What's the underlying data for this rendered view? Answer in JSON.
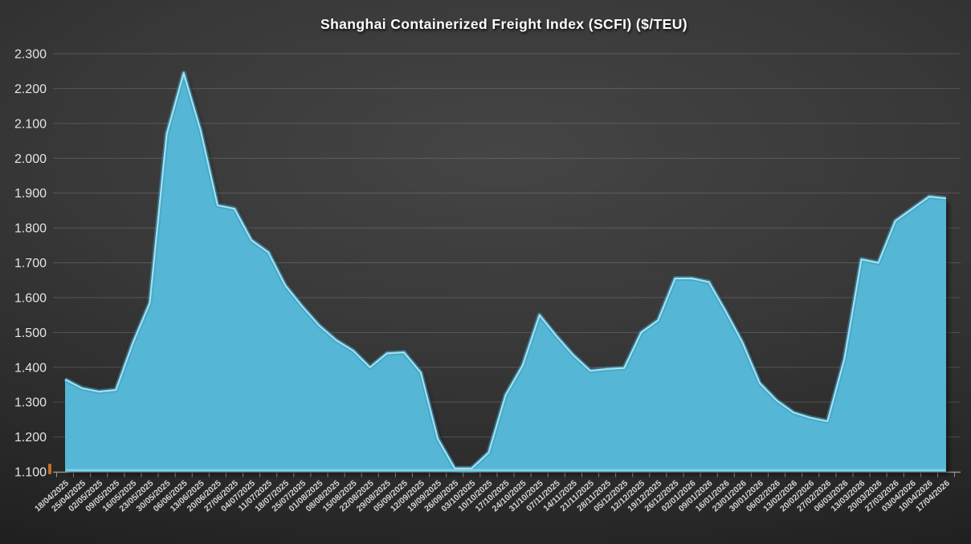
{
  "chart_data": {
    "type": "area",
    "title": "Shanghai Containerized Freight Index (SCFI) ($/TEU)",
    "unit": "$/TEU",
    "x": [
      "18/04/2025",
      "25/04/2025",
      "02/05/2025",
      "09/05/2025",
      "16/05/2025",
      "23/05/2025",
      "30/05/2025",
      "06/06/2025",
      "13/06/2025",
      "20/06/2025",
      "27/06/2025",
      "04/07/2025",
      "11/07/2025",
      "18/07/2025",
      "25/07/2025",
      "01/08/2025",
      "08/08/2025",
      "15/08/2025",
      "22/08/2025",
      "29/08/2025",
      "05/09/2025",
      "12/09/2025",
      "19/09/2025",
      "26/09/2025",
      "03/10/2025",
      "10/10/2025",
      "17/10/2025",
      "24/10/2025",
      "31/10/2025",
      "07/11/2025",
      "14/11/2025",
      "21/11/2025",
      "28/11/2025",
      "05/12/2025",
      "12/12/2025",
      "19/12/2025",
      "26/12/2025",
      "02/01/2026",
      "09/01/2026",
      "16/01/2026",
      "23/01/2026",
      "30/01/2026",
      "06/02/2026",
      "13/02/2026",
      "20/02/2026",
      "27/02/2026",
      "06/03/2026",
      "13/03/2026",
      "20/03/2026",
      "27/03/2026",
      "03/04/2026",
      "10/04/2026",
      "17/04/2026"
    ],
    "values": [
      1365,
      1340,
      1330,
      1335,
      1470,
      1585,
      2070,
      2245,
      2080,
      1865,
      1855,
      1765,
      1730,
      1635,
      1575,
      1520,
      1478,
      1448,
      1400,
      1440,
      1443,
      1385,
      1195,
      1110,
      1110,
      1155,
      1320,
      1405,
      1550,
      1490,
      1435,
      1390,
      1395,
      1398,
      1500,
      1535,
      1655,
      1655,
      1645,
      1560,
      1470,
      1355,
      1305,
      1270,
      1255,
      1245,
      1425,
      1710,
      1700,
      1820,
      1855,
      1890,
      1885
    ],
    "ylim": [
      1100,
      2300
    ],
    "ytick_step": 100,
    "ytick_labels": [
      "1.100",
      "1.200",
      "1.300",
      "1.400",
      "1.500",
      "1.600",
      "1.700",
      "1.800",
      "1.900",
      "2.000",
      "2.100",
      "2.200",
      "2.300"
    ],
    "grid": true,
    "legend": "none",
    "colors": {
      "area_fill": "#55b6d5",
      "area_edge_highlight": "#a9e6f4",
      "area_edge_dark": "#3d9dbf",
      "bottom_highlight": "#8fd9ec",
      "gridline": "rgba(255,255,255,0.16)",
      "axis_line": "#9a9a9a",
      "tick": "#9a9a9a",
      "y_label_text": "#e4e4e4",
      "x_label_text": "#d4d4d4",
      "title_text": "#fdfdfd",
      "background_center": "#454545",
      "background_corner": "#181818"
    }
  }
}
